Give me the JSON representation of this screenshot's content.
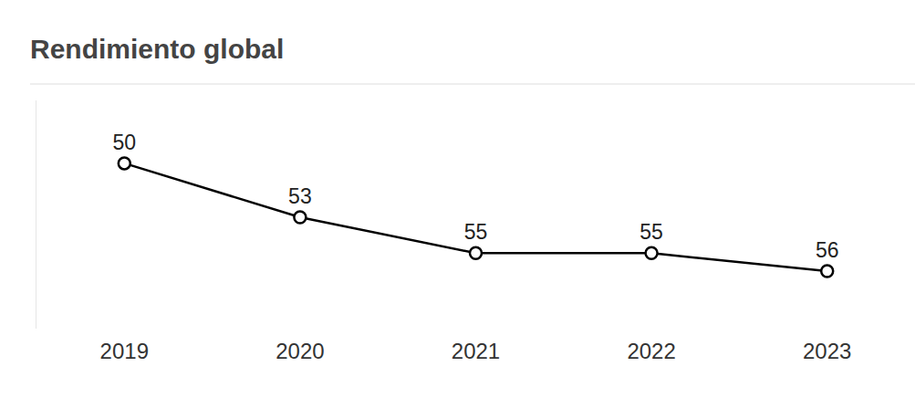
{
  "chart_data": {
    "type": "line",
    "title": "Rendimiento global",
    "categories": [
      "2019",
      "2020",
      "2021",
      "2022",
      "2023"
    ],
    "values": [
      50,
      53,
      55,
      55,
      56
    ],
    "color": "#000000",
    "ylim": [
      59.2,
      46.5
    ],
    "yticks": [],
    "grid": false,
    "tick_labels": "x",
    "data_labels": true,
    "marker": "circle"
  }
}
